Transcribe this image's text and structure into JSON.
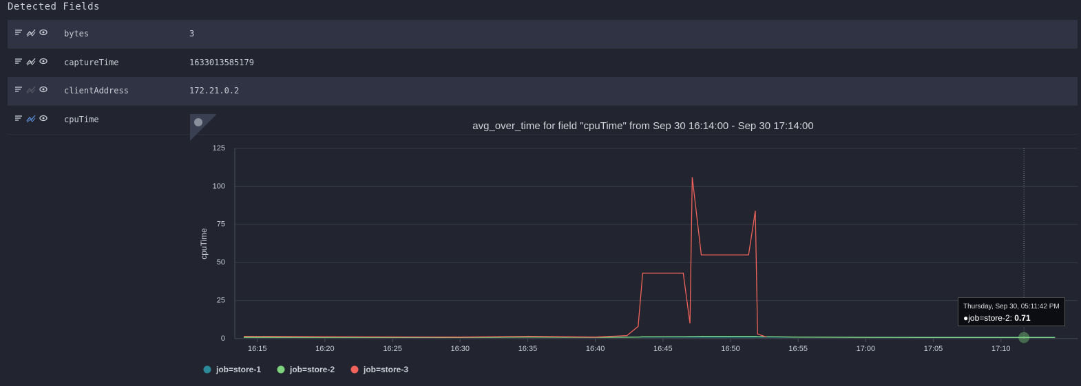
{
  "title": "Detected Fields",
  "fields": [
    {
      "name": "bytes",
      "value": "3"
    },
    {
      "name": "captureTime",
      "value": "1633013585179"
    },
    {
      "name": "clientAddress",
      "value": "172.21.0.2"
    },
    {
      "name": "cpuTime"
    }
  ],
  "chart_data": {
    "type": "line",
    "title": "avg_over_time for field \"cpuTime\" from Sep 30 16:14:00 - Sep 30 17:14:00",
    "y_label": "cpuTime",
    "x": [
      "16:14:00",
      "16:20:00",
      "16:30:00",
      "16:35:00",
      "16:40:00",
      "16:42:20",
      "16:43:10",
      "16:43:30",
      "16:46:30",
      "16:47:00",
      "16:47:10",
      "16:47:50",
      "16:51:20",
      "16:51:50",
      "16:52:00",
      "16:52:40",
      "16:55:00",
      "17:00:00",
      "17:05:00",
      "17:11:42",
      "17:14:00"
    ],
    "xlim": [
      "16:13:20",
      "17:15:40"
    ],
    "xticks": [
      "16:15",
      "16:20",
      "16:25",
      "16:30",
      "16:35",
      "16:40",
      "16:45",
      "16:50",
      "16:55",
      "17:00",
      "17:05",
      "17:10"
    ],
    "ylim": [
      0,
      125
    ],
    "yticks": [
      0,
      25,
      50,
      75,
      100,
      125
    ],
    "grid": true,
    "series": [
      {
        "name": "job=store-1",
        "color": "#2b8a9a",
        "values": [
          1,
          1,
          0.9,
          1,
          0.9,
          1,
          1,
          1,
          1,
          1,
          1,
          1,
          1,
          1,
          1,
          1,
          0.9,
          0.9,
          0.9,
          0.9,
          0.9
        ]
      },
      {
        "name": "job=store-2",
        "color": "#7ed37e",
        "values": [
          0.8,
          0.8,
          0.7,
          1,
          0.8,
          0.9,
          1,
          1.2,
          1.3,
          1.4,
          1.4,
          1.5,
          1.5,
          1.5,
          1.4,
          1.3,
          1,
          0.8,
          0.7,
          0.71,
          0.7
        ]
      },
      {
        "name": "job=store-3",
        "color": "#f0625a",
        "values": [
          1.5,
          1.2,
          1,
          1.5,
          1,
          2,
          8,
          43,
          43,
          10,
          106,
          55,
          55,
          84,
          3,
          1,
          null,
          null,
          null,
          null,
          null
        ]
      }
    ],
    "tooltip": {
      "title": "Thursday, Sep 30, 05:11:42 PM",
      "series": 1,
      "index": 19
    }
  }
}
